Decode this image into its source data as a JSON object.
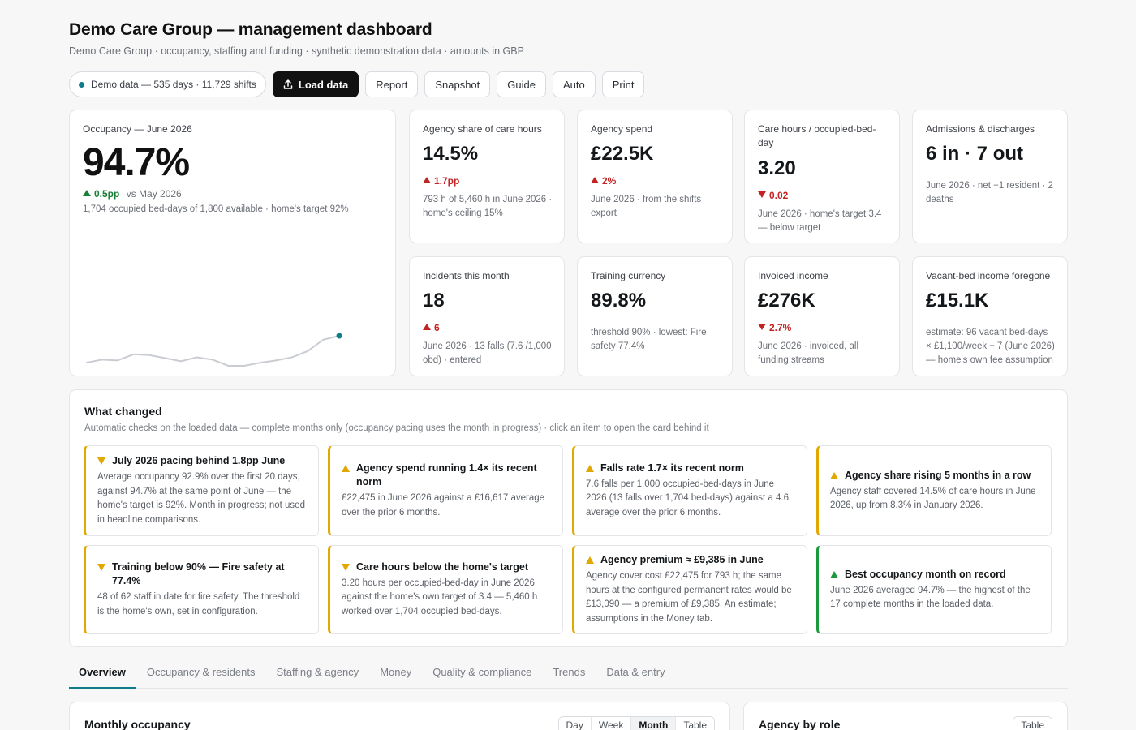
{
  "header": {
    "title": "Demo Care Group — management dashboard",
    "subtitle": "Demo Care Group · occupancy, staffing and funding · synthetic demonstration data · amounts in GBP"
  },
  "toolbar": {
    "status": "Demo data — 535 days · 11,729 shifts",
    "load": "Load data",
    "report": "Report",
    "snapshot": "Snapshot",
    "guide": "Guide",
    "auto": "Auto",
    "print": "Print"
  },
  "occupancy": {
    "label": "Occupancy — June 2026",
    "value": "94.7%",
    "delta": "0.5pp",
    "delta_ref": "vs May 2026",
    "note": "1,704 occupied bed-days of 1,800 available · home's target 92%",
    "trend": [
      91.2,
      91.6,
      91.5,
      92.3,
      92.2,
      91.8,
      91.4,
      91.9,
      91.6,
      90.8,
      90.8,
      91.2,
      91.5,
      91.9,
      92.7,
      94.2,
      94.7
    ],
    "accent": "#0f7c8c"
  },
  "kpis": [
    {
      "label": "Agency share of care hours",
      "value": "14.5%",
      "dir": "up",
      "delta": "1.7pp",
      "note": "793 h of 5,460 h in June 2026 · home's ceiling 15%"
    },
    {
      "label": "Agency spend",
      "value": "£22.5K",
      "dir": "up",
      "delta": "2%",
      "note": "June 2026 · from the shifts export"
    },
    {
      "label": "Care hours / occupied-bed-day",
      "value": "3.20",
      "dir": "down",
      "delta": "0.02",
      "note": "June 2026 · home's target 3.4 — below target"
    },
    {
      "label": "Admissions & discharges",
      "value": "6 in · 7 out",
      "dir": "",
      "delta": "",
      "note": "June 2026 · net −1 resident · 2 deaths"
    },
    {
      "label": "Incidents this month",
      "value": "18",
      "dir": "up",
      "delta": "6",
      "note": "June 2026 · 13 falls (7.6 /1,000 obd) · entered"
    },
    {
      "label": "Training currency",
      "value": "89.8%",
      "dir": "",
      "delta": "",
      "note": "threshold 90% · lowest: Fire safety 77.4%"
    },
    {
      "label": "Invoiced income",
      "value": "£276K",
      "dir": "down",
      "delta": "2.7%",
      "note": "June 2026 · invoiced, all funding streams"
    },
    {
      "label": "Vacant-bed income foregone",
      "value": "£15.1K",
      "dir": "",
      "delta": "",
      "note": "estimate: 96 vacant bed-days × £1,100/week ÷ 7 (June 2026) — home's own fee assumption"
    }
  ],
  "changes": {
    "title": "What changed",
    "subtitle": "Automatic checks on the loaded data — complete months only (occupancy pacing uses the month in progress) · click an item to open the card behind it",
    "items": [
      {
        "kind": "warn-down",
        "title": "July 2026 pacing behind 1.8pp June",
        "body": "Average occupancy 92.9% over the first 20 days, against 94.7% at the same point of June — the home's target is 92%. Month in progress; not used in headline comparisons."
      },
      {
        "kind": "warn-up",
        "title": "Agency spend running 1.4× its recent norm",
        "body": "£22,475 in June 2026 against a £16,617 average over the prior 6 months."
      },
      {
        "kind": "warn-up",
        "title": "Falls rate 1.7× its recent norm",
        "body": "7.6 falls per 1,000 occupied-bed-days in June 2026 (13 falls over 1,704 bed-days) against a 4.6 average over the prior 6 months."
      },
      {
        "kind": "warn-up",
        "title": "Agency share rising 5 months in a row",
        "body": "Agency staff covered 14.5% of care hours in June 2026, up from 8.3% in January 2026."
      },
      {
        "kind": "warn-down",
        "title": "Training below 90% — Fire safety at 77.4%",
        "body": "48 of 62 staff in date for fire safety. The threshold is the home's own, set in configuration."
      },
      {
        "kind": "warn-down",
        "title": "Care hours below the home's target",
        "body": "3.20 hours per occupied-bed-day in June 2026 against the home's own target of 3.4 — 5,460 h worked over 1,704 occupied bed-days."
      },
      {
        "kind": "warn-up",
        "title": "Agency premium ≈ £9,385 in June",
        "body": "Agency cover cost £22,475 for 793 h; the same hours at the configured permanent rates would be £13,090 — a premium of £9,385. An estimate; assumptions in the Money tab."
      },
      {
        "kind": "good-up",
        "title": "Best occupancy month on record",
        "body": "June 2026 averaged 94.7% — the highest of the 17 complete months in the loaded data."
      }
    ]
  },
  "tabs": [
    "Overview",
    "Occupancy & residents",
    "Staffing & agency",
    "Money",
    "Quality & compliance",
    "Trends",
    "Data & entry"
  ],
  "panels": {
    "monthly": {
      "title": "Monthly occupancy",
      "seg": [
        "Day",
        "Week",
        "Month",
        "Table"
      ],
      "active": "Month"
    },
    "agency": {
      "title": "Agency by role",
      "seg": [
        "Table"
      ]
    }
  }
}
